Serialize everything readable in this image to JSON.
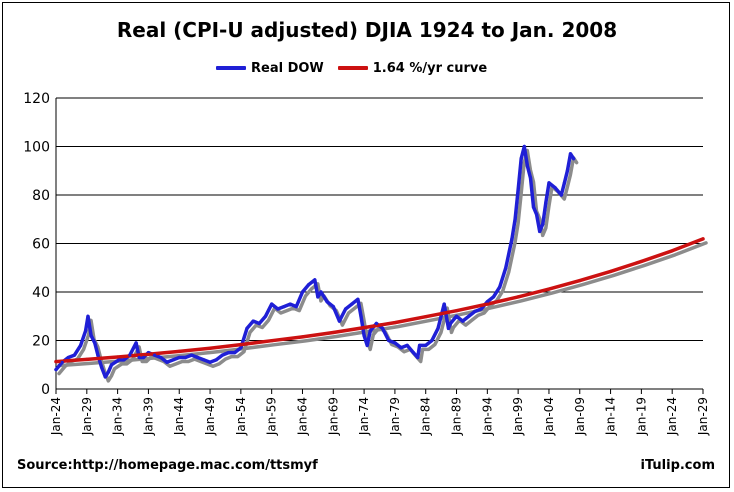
{
  "chart_data": {
    "type": "line",
    "title": "Real (CPI-U adjusted) DJIA 1924 to Jan. 2008",
    "xlabel": "",
    "ylabel": "",
    "ylim": [
      0,
      120
    ],
    "xlim": [
      1924,
      2029
    ],
    "y_ticks": [
      0,
      20,
      40,
      60,
      80,
      100,
      120
    ],
    "x_tick_labels": [
      "Jan-24",
      "Jan-29",
      "Jan-34",
      "Jan-39",
      "Jan-44",
      "Jan-49",
      "Jan-54",
      "Jan-59",
      "Jan-64",
      "Jan-69",
      "Jan-74",
      "Jan-79",
      "Jan-84",
      "Jan-89",
      "Jan-94",
      "Jan-99",
      "Jan-04",
      "Jan-09",
      "Jan-14",
      "Jan-19",
      "Jan-24",
      "Jan-29"
    ],
    "grid": "horizontal",
    "legend_position": "top-center",
    "series": [
      {
        "name": "Real DOW",
        "color": "#1f1fd6",
        "x": [
          1924.0,
          1925.0,
          1926.0,
          1927.0,
          1928.0,
          1928.8,
          1929.2,
          1929.7,
          1930.3,
          1930.8,
          1931.4,
          1932.0,
          1932.5,
          1933.0,
          1933.6,
          1934.2,
          1935.0,
          1936.0,
          1937.0,
          1937.5,
          1938.2,
          1939.0,
          1940.0,
          1941.0,
          1942.0,
          1943.0,
          1944.0,
          1945.0,
          1946.0,
          1947.0,
          1948.0,
          1949.0,
          1950.0,
          1951.0,
          1952.0,
          1953.0,
          1954.0,
          1955.0,
          1956.0,
          1957.0,
          1958.0,
          1959.0,
          1960.0,
          1961.0,
          1962.0,
          1963.0,
          1964.0,
          1965.0,
          1966.0,
          1966.5,
          1967.0,
          1968.0,
          1969.0,
          1970.0,
          1971.0,
          1972.0,
          1973.0,
          1973.5,
          1974.0,
          1974.5,
          1975.0,
          1976.0,
          1977.0,
          1978.0,
          1979.0,
          1980.0,
          1981.0,
          1982.0,
          1982.7,
          1983.0,
          1984.0,
          1985.0,
          1986.0,
          1987.0,
          1987.7,
          1988.0,
          1989.0,
          1990.0,
          1991.0,
          1992.0,
          1993.0,
          1994.0,
          1995.0,
          1996.0,
          1997.0,
          1998.0,
          1998.5,
          1999.0,
          1999.5,
          2000.0,
          2000.5,
          2001.0,
          2001.5,
          2002.0,
          2002.5,
          2003.0,
          2003.5,
          2004.0,
          2005.0,
          2006.0,
          2006.5,
          2007.0,
          2007.5,
          2008.0
        ],
        "values": [
          8,
          11,
          13,
          14,
          18,
          24,
          30,
          22,
          19,
          14,
          9,
          5,
          7,
          10,
          11,
          12,
          12,
          14,
          19,
          13,
          13,
          15,
          14,
          13,
          11,
          12,
          13,
          13,
          14,
          13,
          12,
          11,
          12,
          14,
          15,
          15,
          17,
          25,
          28,
          27,
          30,
          35,
          33,
          34,
          35,
          34,
          40,
          43,
          45,
          38,
          40,
          36,
          34,
          28,
          33,
          35,
          37,
          30,
          22,
          18,
          24,
          27,
          25,
          20,
          19,
          17,
          18,
          15,
          13,
          18,
          18,
          20,
          25,
          35,
          25,
          27,
          30,
          28,
          30,
          32,
          33,
          36,
          38,
          42,
          50,
          62,
          70,
          82,
          95,
          100,
          92,
          87,
          75,
          72,
          65,
          68,
          77,
          85,
          83,
          80,
          85,
          90,
          97,
          95
        ]
      },
      {
        "name": "1.64 %/yr curve",
        "color": "#cc1111",
        "x": [
          1924,
          1929,
          1934,
          1939,
          1944,
          1949,
          1954,
          1959,
          1964,
          1969,
          1974,
          1979,
          1984,
          1989,
          1994,
          1999,
          2004,
          2009,
          2014,
          2019,
          2024,
          2029
        ],
        "values": [
          11.3,
          12.2,
          13.2,
          14.3,
          15.5,
          16.8,
          18.3,
          19.9,
          21.5,
          23.3,
          25.3,
          27.4,
          29.8,
          32.3,
          35.0,
          38.0,
          41.2,
          44.7,
          48.5,
          52.6,
          57.0,
          61.9
        ]
      }
    ]
  },
  "labels": {
    "title": "Real (CPI-U adjusted) DJIA 1924 to Jan. 2008",
    "legend_dow": "Real DOW",
    "legend_curve": "1.64 %/yr curve",
    "source": "Source:http://homepage.mac.com/ttsmyf",
    "credit": "iTulip.com"
  },
  "colors": {
    "dow": "#1f1fd6",
    "curve": "#cc1111",
    "shadow": "#8c8c8c",
    "grid": "#000000"
  }
}
